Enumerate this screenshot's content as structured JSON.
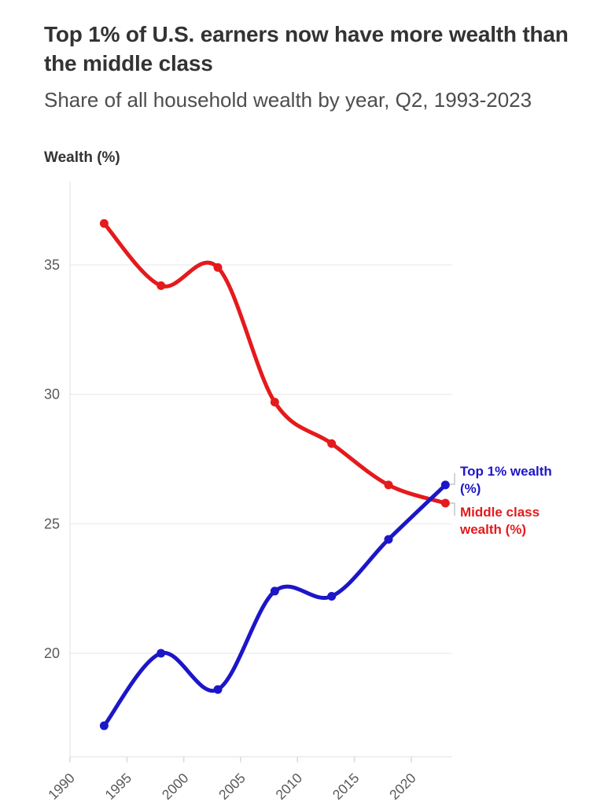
{
  "header": {
    "title": "Top 1% of U.S. earners now have more wealth than the middle class",
    "subtitle": "Share of all household wealth by year, Q2, 1993-2023"
  },
  "y_axis_title": "Wealth (%)",
  "colors": {
    "top1_line": "#1c16c8",
    "middle_line": "#e41a1c",
    "grid": "#e7e7e7",
    "axis": "#e0e0e0",
    "tick": "#d9d9d9",
    "tick_label": "#595959",
    "connector": "#c6c6c6",
    "title_text": "#333333",
    "subtitle_text": "#4d4d4d"
  },
  "chart_data": {
    "type": "line",
    "title": "Top 1% of U.S. earners now have more wealth than the middle class",
    "subtitle": "Share of all household wealth by year, Q2, 1993-2023",
    "xlabel": "",
    "ylabel": "Wealth (%)",
    "x": [
      1993,
      1998,
      2003,
      2008,
      2013,
      2018,
      2023
    ],
    "series": [
      {
        "name": "Middle class wealth (%)",
        "color": "#e41a1c",
        "values": [
          36.6,
          34.2,
          34.9,
          29.7,
          28.1,
          26.5,
          25.8
        ]
      },
      {
        "name": "Top 1% wealth (%)",
        "color": "#1c16c8",
        "values": [
          17.2,
          20.0,
          18.6,
          22.4,
          22.2,
          24.4,
          26.5
        ]
      }
    ],
    "xticks": [
      1990,
      1995,
      2000,
      2005,
      2010,
      2015,
      2020
    ],
    "yticks": [
      20,
      25,
      30,
      35
    ],
    "xlim": [
      1990,
      2023.6
    ],
    "ylim": [
      16,
      38.2
    ],
    "grid": "horizontal-only",
    "legend_position": "direct-labels-right",
    "direct_labels": {
      "top1": [
        "Top 1% wealth",
        "(%)"
      ],
      "middle": [
        "Middle class",
        "wealth (%)"
      ]
    }
  }
}
